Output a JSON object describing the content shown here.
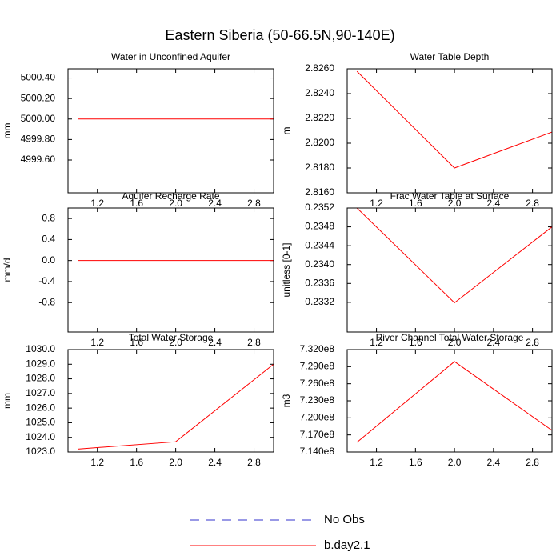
{
  "title": "Eastern Siberia (50-66.5N,90-140E)",
  "legend": [
    {
      "name": "No Obs",
      "color": "#3333cc",
      "dashed": true
    },
    {
      "name": "b.day2.1",
      "color": "#ff0000",
      "dashed": false
    }
  ],
  "chart_data": [
    {
      "type": "line",
      "title": "Water in Unconfined Aquifer",
      "y_label": "mm",
      "x": [
        1,
        2,
        3
      ],
      "values": [
        5000,
        5000,
        5000
      ],
      "color": "#ff0000",
      "xlim": [
        0.9,
        3.0
      ],
      "xticks": [
        1.2,
        1.6,
        {
          "value": 2,
          "label": "2.0"
        },
        2.4,
        2.8
      ],
      "ylim": [
        4999.28,
        5000.49
      ],
      "yticks": [
        {
          "value": 4999.6,
          "label": "4999.60"
        },
        {
          "value": 4999.8,
          "label": "4999.80"
        },
        {
          "value": 5000,
          "label": "5000.00"
        },
        {
          "value": 5000.2,
          "label": "5000.20"
        },
        {
          "value": 5000.4,
          "label": "5000.40"
        }
      ]
    },
    {
      "type": "line",
      "title": "Water Table Depth",
      "y_label": "m",
      "x": [
        1,
        2,
        3
      ],
      "values": [
        2.8258,
        2.818,
        2.8209
      ],
      "color": "#ff0000",
      "xlim": [
        0.9,
        3.0
      ],
      "xticks": [
        1.2,
        1.6,
        {
          "value": 2,
          "label": "2.0"
        },
        2.4,
        2.8
      ],
      "ylim": [
        2.816,
        2.826
      ],
      "yticks": [
        {
          "value": 2.816,
          "label": "2.8160"
        },
        {
          "value": 2.818,
          "label": "2.8180"
        },
        {
          "value": 2.82,
          "label": "2.8200"
        },
        {
          "value": 2.822,
          "label": "2.8220"
        },
        {
          "value": 2.824,
          "label": "2.8240"
        },
        {
          "value": 2.826,
          "label": "2.8260"
        }
      ]
    },
    {
      "type": "line",
      "title": "Aquifer Recharge Rate",
      "y_label": "mm/d",
      "x": [
        1,
        2,
        3
      ],
      "values": [
        0,
        0,
        0
      ],
      "color": "#ff0000",
      "xlim": [
        0.9,
        3.0
      ],
      "xticks": [
        1.2,
        1.6,
        {
          "value": 2,
          "label": "2.0"
        },
        2.4,
        2.8
      ],
      "ylim": [
        -1.36,
        1.0
      ],
      "yticks": [
        -0.8,
        -0.4,
        {
          "value": 0,
          "label": "0.0"
        },
        0.4,
        0.8
      ]
    },
    {
      "type": "line",
      "title": "Frac Water Table at Surface",
      "y_label": "unitless [0-1]",
      "x": [
        1,
        2,
        3
      ],
      "values": [
        0.2352,
        0.23319,
        0.2348
      ],
      "color": "#ff0000",
      "xlim": [
        0.9,
        3.0
      ],
      "xticks": [
        1.2,
        1.6,
        {
          "value": 2,
          "label": "2.0"
        },
        2.4,
        2.8
      ],
      "ylim": [
        0.23257,
        0.2352
      ],
      "yticks": [
        0.2332,
        0.2336,
        {
          "value": 0.234,
          "label": "0.2340"
        },
        0.2344,
        0.2348,
        0.2352
      ]
    },
    {
      "type": "line",
      "title": "Total Water Storage",
      "y_label": "mm",
      "x": [
        1,
        2,
        3
      ],
      "values": [
        1023.2,
        1023.7,
        1029.0
      ],
      "color": "#ff0000",
      "xlim": [
        0.9,
        3.0
      ],
      "xticks": [
        1.2,
        1.6,
        {
          "value": 2,
          "label": "2.0"
        },
        2.4,
        2.8
      ],
      "ylim": [
        1023,
        1030
      ],
      "yticks": [
        {
          "value": 1023,
          "label": "1023.0"
        },
        {
          "value": 1024,
          "label": "1024.0"
        },
        {
          "value": 1025,
          "label": "1025.0"
        },
        {
          "value": 1026,
          "label": "1026.0"
        },
        {
          "value": 1027,
          "label": "1027.0"
        },
        {
          "value": 1028,
          "label": "1028.0"
        },
        {
          "value": 1029,
          "label": "1029.0"
        },
        {
          "value": 1030,
          "label": "1030.0"
        }
      ]
    },
    {
      "type": "line",
      "title": "River Channel Total Water Storage",
      "y_label": "m3",
      "x": [
        1,
        2,
        3
      ],
      "values": [
        715700000,
        729900000,
        717800000
      ],
      "color": "#ff0000",
      "xlim": [
        0.9,
        3.0
      ],
      "xticks": [
        1.2,
        1.6,
        {
          "value": 2,
          "label": "2.0"
        },
        2.4,
        2.8
      ],
      "ylim": [
        714000000,
        732000000
      ],
      "yticks": [
        {
          "value": 714000000,
          "label": "7.140e8"
        },
        {
          "value": 717000000,
          "label": "7.170e8"
        },
        {
          "value": 720000000,
          "label": "7.200e8"
        },
        {
          "value": 723000000,
          "label": "7.230e8"
        },
        {
          "value": 726000000,
          "label": "7.260e8"
        },
        {
          "value": 729000000,
          "label": "7.290e8"
        },
        {
          "value": 732000000,
          "label": "7.320e8"
        }
      ]
    }
  ]
}
